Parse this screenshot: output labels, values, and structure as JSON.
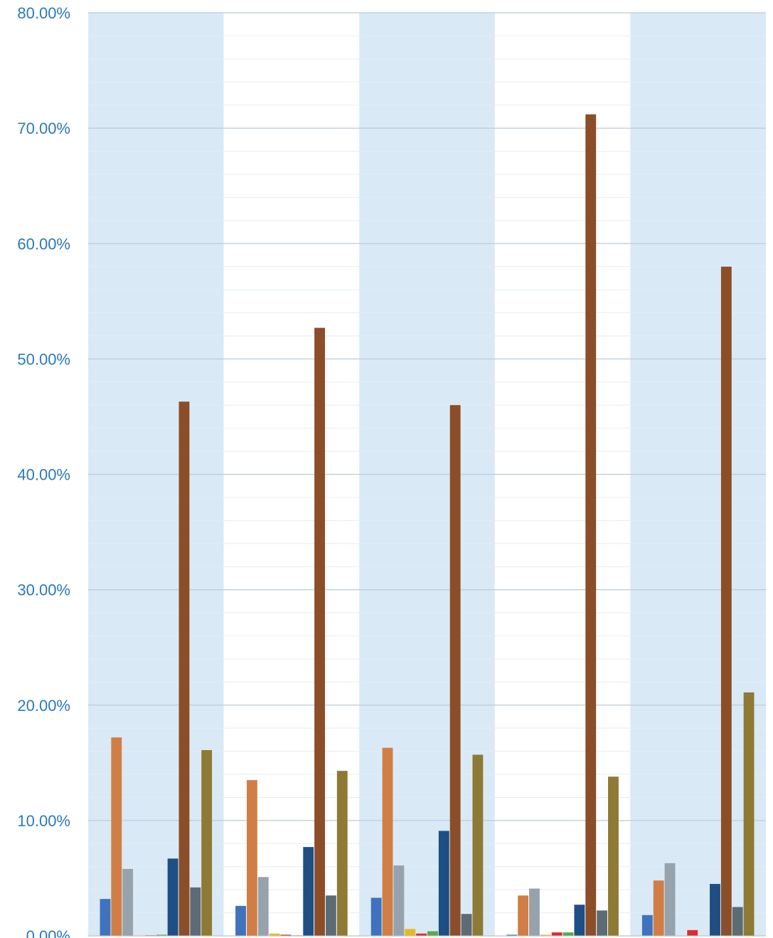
{
  "chart_data": {
    "type": "bar",
    "title": "",
    "xlabel": "",
    "ylabel": "",
    "ylim": [
      0,
      80
    ],
    "yticks": [
      "0.00%",
      "10.00%",
      "20.00%",
      "30.00%",
      "40.00%",
      "50.00%",
      "60.00%",
      "70.00%",
      "80.00%"
    ],
    "grid": true,
    "legend": "none",
    "categories": [
      "",
      "",
      "",
      "",
      ""
    ],
    "band_colors": [
      "#d9eaf6",
      "#ffffff",
      "#d9eaf6",
      "#ffffff",
      "#d9eaf6"
    ],
    "series": [
      {
        "color": "#3f73be",
        "values": [
          3.2,
          2.6,
          3.3,
          0.1,
          1.8
        ]
      },
      {
        "color": "#d07e45",
        "values": [
          17.2,
          13.5,
          16.3,
          3.5,
          4.8
        ]
      },
      {
        "color": "#96a3ad",
        "values": [
          5.8,
          5.1,
          6.1,
          4.1,
          6.3
        ]
      },
      {
        "color": "#e8b826",
        "values": [
          0.0,
          0.2,
          0.6,
          0.1,
          0.0
        ]
      },
      {
        "color": "#e12b2b",
        "values": [
          0.05,
          0.1,
          0.2,
          0.3,
          0.5
        ]
      },
      {
        "color": "#5ba84b",
        "values": [
          0.1,
          0.05,
          0.4,
          0.3,
          0.0
        ]
      },
      {
        "color": "#1f4e84",
        "values": [
          6.7,
          7.7,
          9.1,
          2.7,
          4.5
        ]
      },
      {
        "color": "#8b4e28",
        "values": [
          46.3,
          52.7,
          46.0,
          71.2,
          58.0
        ]
      },
      {
        "color": "#5d6b74",
        "values": [
          4.2,
          3.5,
          1.9,
          2.2,
          2.5
        ]
      },
      {
        "color": "#8e7a34",
        "values": [
          16.1,
          14.3,
          15.7,
          13.8,
          21.1
        ]
      }
    ]
  }
}
